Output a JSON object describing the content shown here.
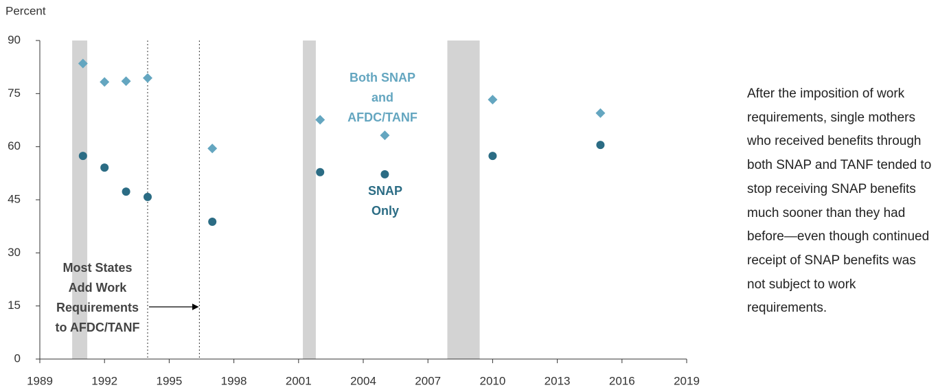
{
  "chart_data": {
    "type": "scatter",
    "y_label": "Percent",
    "x": [
      1991,
      1992,
      1993,
      1994,
      1997,
      2002,
      2005,
      2010,
      2015
    ],
    "series": [
      {
        "name": "Both SNAP and AFDC/TANF",
        "color": "#64a6c0",
        "marker": "diamond",
        "values": [
          83.5,
          78.3,
          78.5,
          79.4,
          59.5,
          67.6,
          63.2,
          73.3,
          69.5
        ]
      },
      {
        "name": "SNAP Only",
        "color": "#2b6c84",
        "marker": "circle",
        "values": [
          57.4,
          54.1,
          47.3,
          45.8,
          38.8,
          52.8,
          52.2,
          57.4,
          60.5
        ]
      }
    ],
    "xlim": [
      1989,
      2019
    ],
    "xticks": [
      1989,
      1992,
      1995,
      1998,
      2001,
      2004,
      2007,
      2010,
      2013,
      2016,
      2019
    ],
    "ylim": [
      0,
      90
    ],
    "yticks": [
      0,
      15,
      30,
      45,
      60,
      75,
      90
    ],
    "recessions": [
      [
        1990.5,
        1991.2
      ],
      [
        2001.2,
        2001.8
      ],
      [
        2007.9,
        2009.4
      ]
    ],
    "reference_lines": [
      1994,
      1996.4
    ],
    "annotation": "Most States Add Work Requirements to AFDC/TANF",
    "note": "After the imposition of work requirements, single mothers who received benefits through both SNAP and TANF tended to stop receiving SNAP benefits much sooner than they had before—even though continued receipt of SNAP benefits was not subject to work requirements."
  }
}
